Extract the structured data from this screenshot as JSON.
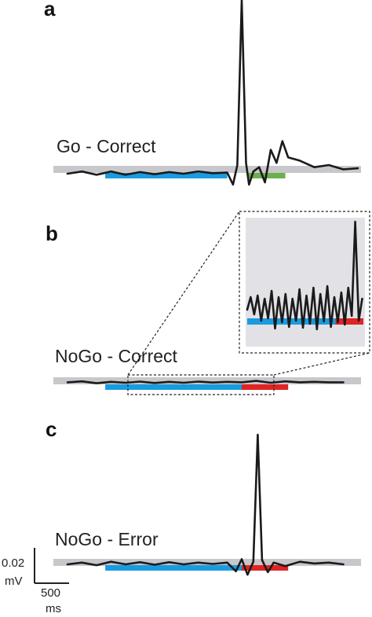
{
  "chart_data": {
    "type": "line",
    "panels": [
      {
        "letter": "a",
        "condition": "Go - Correct",
        "segments": {
          "blue": [
            0.13,
            0.55
          ],
          "after": [
            0.62,
            0.75
          ],
          "after_color": "#6ab04c"
        },
        "trace": [
          [
            0,
            0
          ],
          [
            0.05,
            0.2
          ],
          [
            0.1,
            -0.1
          ],
          [
            0.15,
            0.2
          ],
          [
            0.2,
            -0.1
          ],
          [
            0.25,
            0.15
          ],
          [
            0.3,
            -0.05
          ],
          [
            0.35,
            0.15
          ],
          [
            0.4,
            0
          ],
          [
            0.45,
            0.2
          ],
          [
            0.5,
            0.05
          ],
          [
            0.55,
            0.1
          ],
          [
            0.57,
            -1.0
          ],
          [
            0.585,
            0.8
          ],
          [
            0.6,
            16.0
          ],
          [
            0.615,
            1.0
          ],
          [
            0.625,
            -1.0
          ],
          [
            0.64,
            0.2
          ],
          [
            0.66,
            0.6
          ],
          [
            0.68,
            -0.8
          ],
          [
            0.7,
            2.2
          ],
          [
            0.72,
            1.0
          ],
          [
            0.74,
            3.0
          ],
          [
            0.76,
            1.5
          ],
          [
            0.8,
            1.2
          ],
          [
            0.85,
            0.6
          ],
          [
            0.9,
            0.8
          ],
          [
            0.95,
            0.4
          ],
          [
            1,
            0.5
          ]
        ]
      },
      {
        "letter": "b",
        "condition": "NoGo - Correct",
        "segments": {
          "blue": [
            0.13,
            0.6
          ],
          "after": [
            0.6,
            0.76
          ],
          "after_color": "#e02424"
        },
        "trace": [
          [
            0,
            0.1
          ],
          [
            0.05,
            0.3
          ],
          [
            0.1,
            -0.1
          ],
          [
            0.15,
            0.2
          ],
          [
            0.2,
            0
          ],
          [
            0.25,
            0.25
          ],
          [
            0.3,
            -0.05
          ],
          [
            0.35,
            0.2
          ],
          [
            0.4,
            0
          ],
          [
            0.45,
            0.25
          ],
          [
            0.5,
            0.05
          ],
          [
            0.55,
            0.2
          ],
          [
            0.6,
            0.1
          ],
          [
            0.65,
            0.4
          ],
          [
            0.7,
            0.0
          ],
          [
            0.75,
            0.3
          ],
          [
            0.8,
            0.1
          ],
          [
            0.85,
            0.2
          ],
          [
            0.9,
            0.1
          ],
          [
            0.95,
            0.1
          ]
        ]
      },
      {
        "letter": "c",
        "condition": "NoGo - Error",
        "segments": {
          "blue": [
            0.13,
            0.6
          ],
          "after": [
            0.6,
            0.76
          ],
          "after_color": "#e02424"
        },
        "trace": [
          [
            0,
            0
          ],
          [
            0.05,
            0.2
          ],
          [
            0.1,
            -0.1
          ],
          [
            0.15,
            0.3
          ],
          [
            0.2,
            0
          ],
          [
            0.25,
            0.25
          ],
          [
            0.3,
            -0.05
          ],
          [
            0.35,
            0.25
          ],
          [
            0.4,
            0
          ],
          [
            0.45,
            0.2
          ],
          [
            0.5,
            0.05
          ],
          [
            0.55,
            0.2
          ],
          [
            0.58,
            -0.8
          ],
          [
            0.6,
            0.6
          ],
          [
            0.62,
            -1.2
          ],
          [
            0.64,
            0.3
          ],
          [
            0.655,
            15.0
          ],
          [
            0.67,
            0.5
          ],
          [
            0.69,
            -0.9
          ],
          [
            0.71,
            0.2
          ],
          [
            0.75,
            -0.2
          ],
          [
            0.8,
            0.3
          ],
          [
            0.85,
            0.1
          ],
          [
            0.9,
            0.2
          ],
          [
            0.95,
            0.0
          ]
        ]
      }
    ],
    "inset": {
      "segments": {
        "blue": [
          0.0,
          0.76
        ],
        "after": [
          0.76,
          1.0
        ],
        "after_color": "#e02424"
      },
      "trace": [
        [
          0,
          1.6
        ],
        [
          0.03,
          3.2
        ],
        [
          0.06,
          1.0
        ],
        [
          0.09,
          3.4
        ],
        [
          0.12,
          0.2
        ],
        [
          0.15,
          3.0
        ],
        [
          0.18,
          0.5
        ],
        [
          0.21,
          4.0
        ],
        [
          0.24,
          -0.8
        ],
        [
          0.27,
          3.2
        ],
        [
          0.3,
          0.0
        ],
        [
          0.33,
          3.6
        ],
        [
          0.36,
          -0.6
        ],
        [
          0.39,
          3.0
        ],
        [
          0.42,
          0.2
        ],
        [
          0.45,
          4.2
        ],
        [
          0.48,
          -0.7
        ],
        [
          0.51,
          3.4
        ],
        [
          0.54,
          -0.2
        ],
        [
          0.57,
          4.4
        ],
        [
          0.6,
          -0.9
        ],
        [
          0.63,
          3.6
        ],
        [
          0.66,
          0.1
        ],
        [
          0.69,
          4.6
        ],
        [
          0.72,
          -0.6
        ],
        [
          0.75,
          3.2
        ],
        [
          0.78,
          0.0
        ],
        [
          0.81,
          3.8
        ],
        [
          0.84,
          -0.3
        ],
        [
          0.87,
          4.4
        ],
        [
          0.9,
          0.8
        ],
        [
          0.93,
          12.8
        ],
        [
          0.96,
          0.2
        ],
        [
          0.99,
          3.0
        ]
      ]
    },
    "scale_bar": {
      "amplitude_label": "0.02",
      "amplitude_unit": "mV",
      "time_label": "500",
      "time_unit": "ms"
    },
    "colors": {
      "baseline": "#c8c8cc",
      "pre": "#1a9be0",
      "inset_bg": "#e2e2e6"
    }
  }
}
